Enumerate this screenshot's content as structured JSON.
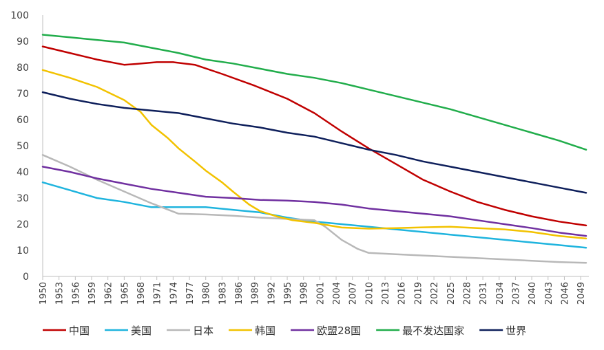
{
  "chart_data": {
    "type": "line",
    "title": "",
    "xlabel": "",
    "ylabel": "",
    "ylim": [
      0,
      100
    ],
    "yticks": [
      0,
      10,
      20,
      30,
      40,
      50,
      60,
      70,
      80,
      90,
      100
    ],
    "xlim": [
      1950,
      2050
    ],
    "xticks": [
      1950,
      1953,
      1956,
      1959,
      1962,
      1965,
      1968,
      1971,
      1974,
      1977,
      1980,
      1983,
      1986,
      1989,
      1992,
      1995,
      1998,
      2001,
      2004,
      2007,
      2010,
      2013,
      2016,
      2019,
      2022,
      2025,
      2028,
      2031,
      2034,
      2037,
      2040,
      2043,
      2046,
      2049
    ],
    "grid": false,
    "legend_position": "bottom",
    "series": [
      {
        "name": "中国",
        "color": "#c00000",
        "points": [
          [
            1950,
            88
          ],
          [
            1955,
            85.5
          ],
          [
            1960,
            83
          ],
          [
            1965,
            81
          ],
          [
            1967,
            81.3
          ],
          [
            1971,
            82
          ],
          [
            1974,
            82
          ],
          [
            1978,
            81
          ],
          [
            1983,
            77.5
          ],
          [
            1989,
            73
          ],
          [
            1995,
            68
          ],
          [
            2000,
            62.5
          ],
          [
            2005,
            55.5
          ],
          [
            2010,
            49
          ],
          [
            2015,
            43
          ],
          [
            2020,
            37
          ],
          [
            2025,
            32.5
          ],
          [
            2030,
            28.5
          ],
          [
            2035,
            25.5
          ],
          [
            2040,
            23
          ],
          [
            2045,
            21
          ],
          [
            2050,
            19.5
          ]
        ]
      },
      {
        "name": "美国",
        "color": "#1fb4de",
        "points": [
          [
            1950,
            36
          ],
          [
            1955,
            33
          ],
          [
            1960,
            30
          ],
          [
            1965,
            28.5
          ],
          [
            1970,
            26.5
          ],
          [
            1975,
            26.5
          ],
          [
            1980,
            26.5
          ],
          [
            1985,
            25.5
          ],
          [
            1990,
            24.5
          ],
          [
            1995,
            22.5
          ],
          [
            2000,
            21
          ],
          [
            2005,
            20
          ],
          [
            2010,
            19
          ],
          [
            2015,
            18
          ],
          [
            2020,
            17
          ],
          [
            2025,
            16
          ],
          [
            2030,
            15
          ],
          [
            2035,
            14
          ],
          [
            2040,
            13
          ],
          [
            2045,
            12
          ],
          [
            2050,
            11
          ]
        ]
      },
      {
        "name": "日本",
        "color": "#b8b8b8",
        "points": [
          [
            1950,
            46.5
          ],
          [
            1955,
            42
          ],
          [
            1960,
            37
          ],
          [
            1965,
            32.5
          ],
          [
            1970,
            28
          ],
          [
            1975,
            24
          ],
          [
            1980,
            23.7
          ],
          [
            1985,
            23.2
          ],
          [
            1990,
            22.5
          ],
          [
            1995,
            22
          ],
          [
            2000,
            21.5
          ],
          [
            2002,
            19
          ],
          [
            2005,
            14
          ],
          [
            2008,
            10.5
          ],
          [
            2010,
            9
          ],
          [
            2015,
            8.5
          ],
          [
            2020,
            8
          ],
          [
            2025,
            7.5
          ],
          [
            2030,
            7
          ],
          [
            2035,
            6.5
          ],
          [
            2040,
            6
          ],
          [
            2045,
            5.5
          ],
          [
            2050,
            5.2
          ]
        ]
      },
      {
        "name": "韩国",
        "color": "#f2c200",
        "points": [
          [
            1950,
            79
          ],
          [
            1955,
            76
          ],
          [
            1960,
            72.5
          ],
          [
            1965,
            67.5
          ],
          [
            1968,
            63
          ],
          [
            1970,
            58
          ],
          [
            1973,
            53
          ],
          [
            1975,
            49
          ],
          [
            1978,
            44
          ],
          [
            1980,
            40.5
          ],
          [
            1983,
            36
          ],
          [
            1985,
            32.5
          ],
          [
            1988,
            27.5
          ],
          [
            1990,
            25
          ],
          [
            1993,
            23
          ],
          [
            1996,
            21.5
          ],
          [
            2000,
            20.5
          ],
          [
            2005,
            18.7
          ],
          [
            2010,
            18.3
          ],
          [
            2015,
            18.5
          ],
          [
            2020,
            18.8
          ],
          [
            2025,
            19
          ],
          [
            2030,
            18.5
          ],
          [
            2035,
            18
          ],
          [
            2040,
            17
          ],
          [
            2045,
            15.5
          ],
          [
            2050,
            14.5
          ]
        ]
      },
      {
        "name": "欧盟28国",
        "color": "#7030a0",
        "points": [
          [
            1950,
            42
          ],
          [
            1955,
            40
          ],
          [
            1960,
            37.5
          ],
          [
            1965,
            35.5
          ],
          [
            1970,
            33.5
          ],
          [
            1975,
            32
          ],
          [
            1980,
            30.5
          ],
          [
            1985,
            30
          ],
          [
            1990,
            29.3
          ],
          [
            1995,
            29
          ],
          [
            2000,
            28.5
          ],
          [
            2005,
            27.5
          ],
          [
            2010,
            26
          ],
          [
            2015,
            25
          ],
          [
            2020,
            24
          ],
          [
            2025,
            23
          ],
          [
            2030,
            21.5
          ],
          [
            2035,
            20
          ],
          [
            2040,
            18.5
          ],
          [
            2045,
            16.8
          ],
          [
            2050,
            15.5
          ]
        ]
      },
      {
        "name": "最不发达国家",
        "color": "#21ad4b",
        "points": [
          [
            1950,
            92.5
          ],
          [
            1955,
            91.5
          ],
          [
            1960,
            90.5
          ],
          [
            1965,
            89.5
          ],
          [
            1970,
            87.5
          ],
          [
            1975,
            85.5
          ],
          [
            1980,
            83
          ],
          [
            1985,
            81.5
          ],
          [
            1990,
            79.5
          ],
          [
            1995,
            77.5
          ],
          [
            2000,
            76
          ],
          [
            2005,
            74
          ],
          [
            2010,
            71.5
          ],
          [
            2015,
            69
          ],
          [
            2020,
            66.5
          ],
          [
            2025,
            64
          ],
          [
            2030,
            61
          ],
          [
            2035,
            58
          ],
          [
            2040,
            55
          ],
          [
            2045,
            52
          ],
          [
            2050,
            48.5
          ]
        ]
      },
      {
        "name": "世界",
        "color": "#0e1f5b",
        "points": [
          [
            1950,
            70.5
          ],
          [
            1955,
            68
          ],
          [
            1960,
            66
          ],
          [
            1965,
            64.5
          ],
          [
            1970,
            63.5
          ],
          [
            1975,
            62.5
          ],
          [
            1980,
            60.5
          ],
          [
            1985,
            58.5
          ],
          [
            1990,
            57
          ],
          [
            1995,
            55
          ],
          [
            2000,
            53.5
          ],
          [
            2005,
            51
          ],
          [
            2010,
            48.5
          ],
          [
            2015,
            46.5
          ],
          [
            2020,
            44
          ],
          [
            2025,
            42
          ],
          [
            2030,
            40
          ],
          [
            2035,
            38
          ],
          [
            2040,
            36
          ],
          [
            2045,
            34
          ],
          [
            2050,
            32
          ]
        ]
      }
    ]
  }
}
